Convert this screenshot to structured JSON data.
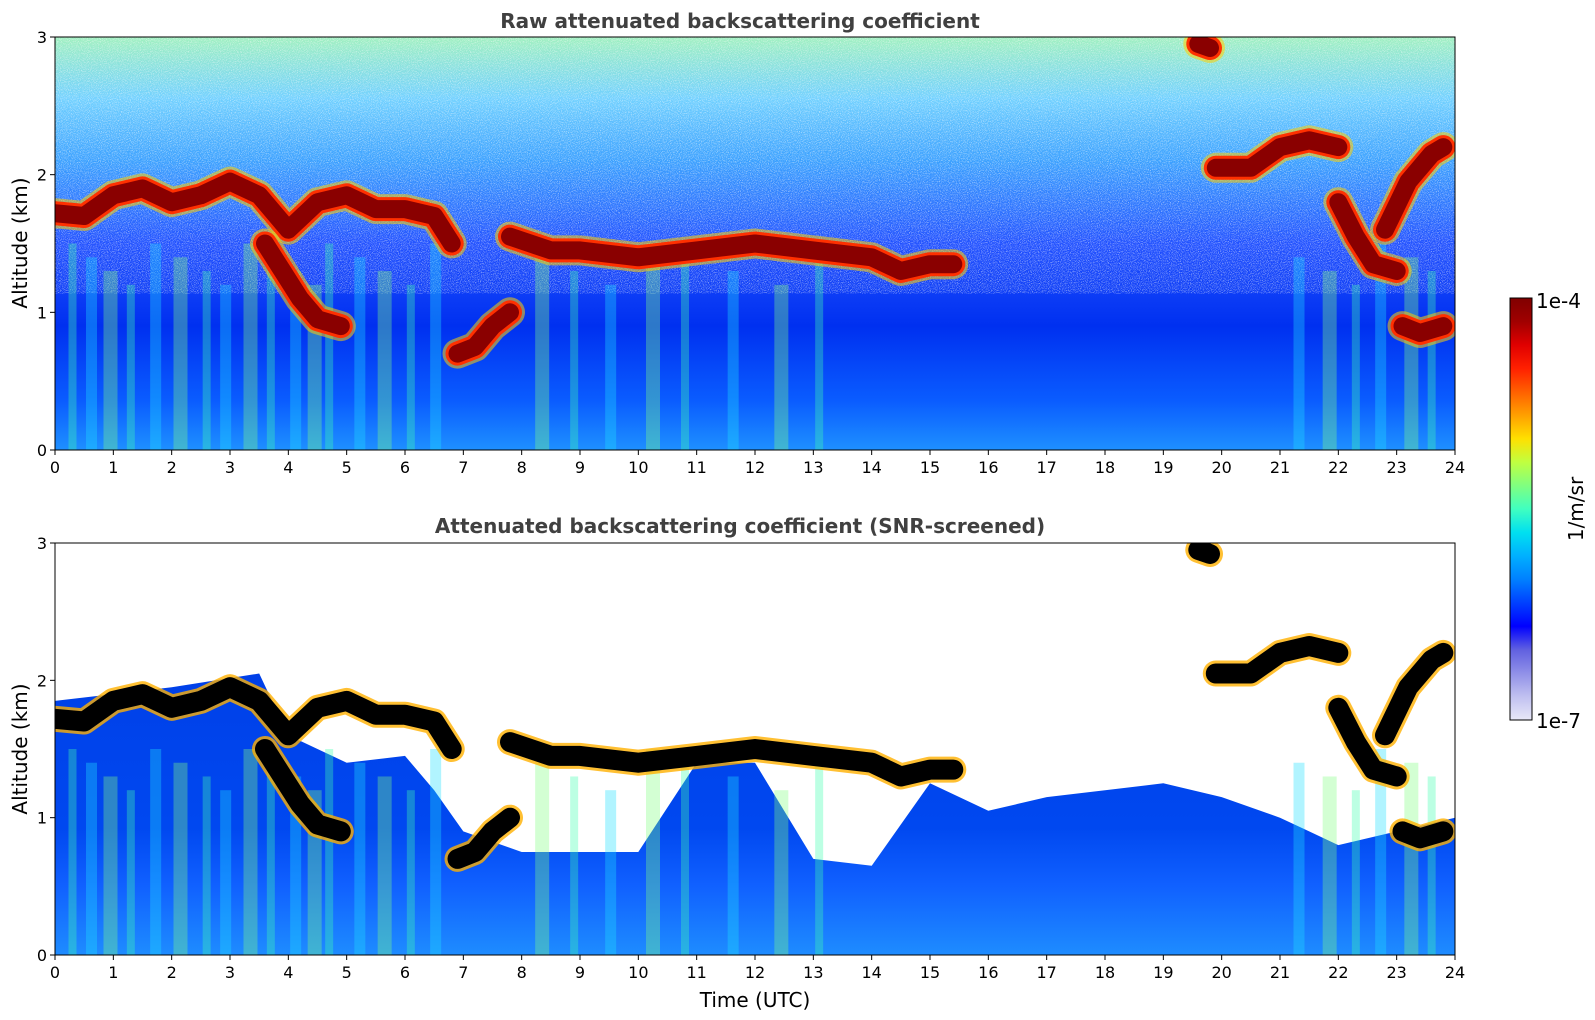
{
  "chart_data": [
    {
      "type": "heatmap",
      "title": "Raw attenuated backscattering coefficient",
      "xlabel": "",
      "ylabel": "Altitude (km)",
      "xlim": [
        0,
        24
      ],
      "ylim": [
        0,
        3
      ],
      "xticks": [
        "0",
        "1",
        "2",
        "3",
        "4",
        "5",
        "6",
        "7",
        "8",
        "9",
        "10",
        "11",
        "12",
        "13",
        "14",
        "15",
        "16",
        "17",
        "18",
        "19",
        "20",
        "21",
        "22",
        "23",
        "24"
      ],
      "yticks": [
        "0",
        "1",
        "2",
        "3"
      ],
      "screened": false,
      "cloud_layers": [
        {
          "x": [
            0,
            0.5,
            1,
            1.5,
            2,
            2.5,
            3,
            3.5,
            4,
            4.5,
            5,
            5.5,
            6,
            6.5,
            6.8
          ],
          "y": [
            1.72,
            1.7,
            1.85,
            1.9,
            1.8,
            1.85,
            1.95,
            1.85,
            1.6,
            1.8,
            1.85,
            1.75,
            1.75,
            1.7,
            1.5
          ]
        },
        {
          "x": [
            3.6,
            3.9,
            4.2,
            4.5,
            4.9
          ],
          "y": [
            1.5,
            1.3,
            1.1,
            0.95,
            0.9
          ]
        },
        {
          "x": [
            6.9,
            7.2,
            7.5,
            7.8
          ],
          "y": [
            0.7,
            0.75,
            0.9,
            1.0
          ]
        },
        {
          "x": [
            7.8,
            8.5,
            9,
            10,
            11,
            12,
            13,
            14,
            14.5,
            15,
            15.4
          ],
          "y": [
            1.55,
            1.45,
            1.45,
            1.4,
            1.45,
            1.5,
            1.45,
            1.4,
            1.3,
            1.35,
            1.35
          ]
        },
        {
          "x": [
            19.9,
            20.5,
            21,
            21.5,
            22
          ],
          "y": [
            2.05,
            2.05,
            2.2,
            2.25,
            2.2
          ]
        },
        {
          "x": [
            22,
            22.3,
            22.6,
            23
          ],
          "y": [
            1.8,
            1.55,
            1.35,
            1.3
          ]
        },
        {
          "x": [
            22.8,
            23.2,
            23.6,
            23.8
          ],
          "y": [
            1.6,
            1.95,
            2.15,
            2.2
          ]
        },
        {
          "x": [
            23.1,
            23.4,
            23.8
          ],
          "y": [
            0.9,
            0.85,
            0.9
          ]
        },
        {
          "x": [
            19.6,
            19.8
          ],
          "y": [
            2.95,
            2.92
          ]
        }
      ]
    },
    {
      "type": "heatmap",
      "title": "Attenuated backscattering coefficient (SNR-screened)",
      "xlabel": "Time (UTC)",
      "ylabel": "Altitude (km)",
      "xlim": [
        0,
        24
      ],
      "ylim": [
        0,
        3
      ],
      "xticks": [
        "0",
        "1",
        "2",
        "3",
        "4",
        "5",
        "6",
        "7",
        "8",
        "9",
        "10",
        "11",
        "12",
        "13",
        "14",
        "15",
        "16",
        "17",
        "18",
        "19",
        "20",
        "21",
        "22",
        "23",
        "24"
      ],
      "yticks": [
        "0",
        "1",
        "2",
        "3"
      ],
      "screened": true,
      "signal_top": [
        [
          0,
          1.85
        ],
        [
          2,
          1.95
        ],
        [
          3.5,
          2.05
        ],
        [
          4,
          1.6
        ],
        [
          5,
          1.4
        ],
        [
          6,
          1.45
        ],
        [
          6.5,
          1.2
        ],
        [
          7,
          0.9
        ],
        [
          8,
          0.75
        ],
        [
          9,
          0.75
        ],
        [
          10,
          0.75
        ],
        [
          11,
          1.4
        ],
        [
          12,
          1.4
        ],
        [
          13,
          0.7
        ],
        [
          14,
          0.65
        ],
        [
          15,
          1.25
        ],
        [
          16,
          1.05
        ],
        [
          17,
          1.15
        ],
        [
          18,
          1.2
        ],
        [
          19,
          1.25
        ],
        [
          20,
          1.15
        ],
        [
          21,
          1.0
        ],
        [
          21.5,
          0.9
        ],
        [
          22,
          0.8
        ],
        [
          23,
          0.9
        ],
        [
          24,
          1.0
        ]
      ]
    }
  ],
  "colorbar": {
    "label": "1/m/sr",
    "max_label": "1e-4",
    "min_label": "1e-7",
    "colors": [
      "#e8e8f8",
      "#c0c0f0",
      "#9090e8",
      "#6060e0",
      "#0000ff",
      "#0040ff",
      "#0080ff",
      "#00b0ff",
      "#00e0f0",
      "#40ffc0",
      "#80ff80",
      "#c0ff40",
      "#ffe000",
      "#ffa000",
      "#ff6000",
      "#ff2000",
      "#e00000",
      "#a00000",
      "#800000"
    ]
  }
}
